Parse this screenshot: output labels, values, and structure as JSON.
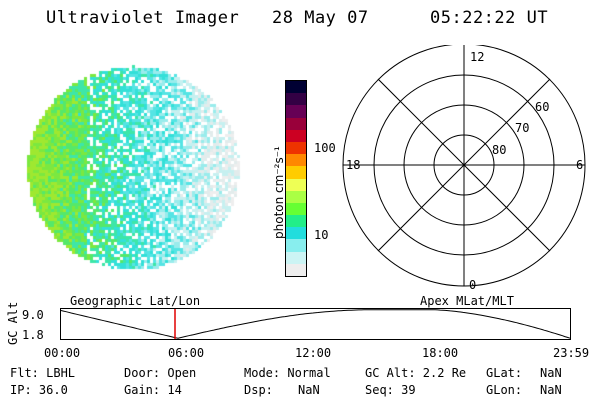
{
  "header": {
    "title": "Ultraviolet Imager",
    "date": "28 May 07",
    "time": "05:22:22 UT"
  },
  "colorbar": {
    "label": "photon cm⁻²s⁻¹",
    "ticks": [
      "100",
      "10"
    ],
    "colors": [
      "#000033",
      "#330044",
      "#660055",
      "#99003a",
      "#cc0022",
      "#ee3300",
      "#ff8800",
      "#ffcc00",
      "#eeff55",
      "#aaff44",
      "#66ff33",
      "#22ee88",
      "#22dddd",
      "#88eeee",
      "#ccf4f4",
      "#eeeeee"
    ]
  },
  "polar": {
    "mlt_labels": [
      "12",
      "18",
      "6",
      "0"
    ],
    "lat_labels": [
      "60",
      "70",
      "80"
    ]
  },
  "timeline": {
    "left_title": "Geographic Lat/Lon",
    "right_title": "Apex MLat/MLT",
    "axis_label": "GC Alt",
    "y_ticks": [
      "9.0",
      "1.8"
    ],
    "x_ticks": [
      "00:00",
      "06:00",
      "12:00",
      "18:00",
      "23:59"
    ],
    "marker_time": "05:22:22"
  },
  "info": {
    "row1": [
      "Flt: LBHL",
      "Door: Open",
      "Mode: Normal",
      "GC Alt: 2.2 Re",
      "GLat:",
      "NaN"
    ],
    "row2": [
      "IP: 36.0",
      "Gain: 14",
      "Dsp:",
      "NaN",
      "Seq: 39",
      "GLon:",
      "NaN"
    ]
  }
}
